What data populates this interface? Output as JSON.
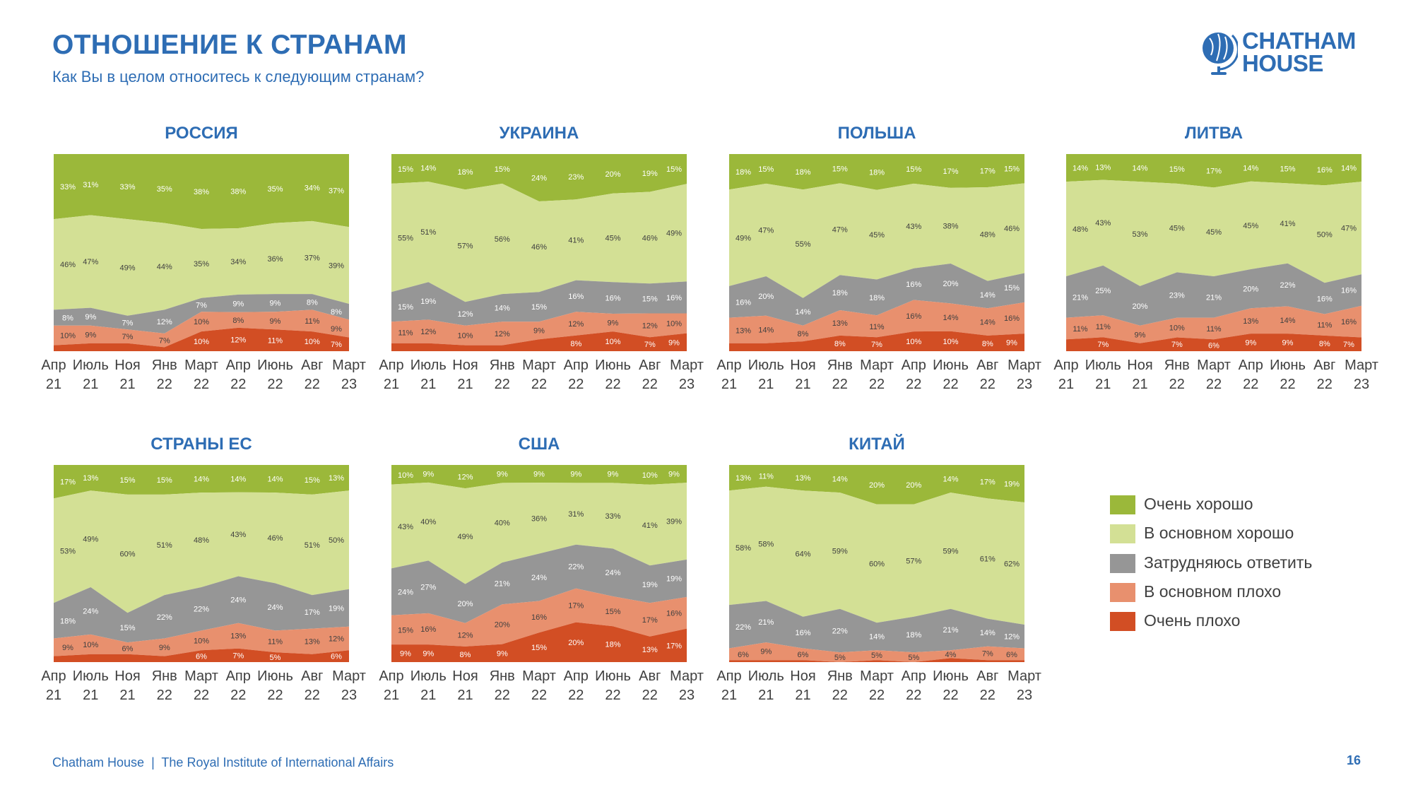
{
  "header": {
    "title": "ОТНОШЕНИЕ К СТРАНАМ",
    "subtitle": "Как Вы в целом относитесь к следующим странам?",
    "logo_text": "CHATHAM HOUSE",
    "logo_line1": "CHATHAM",
    "logo_line2": "HOUSE"
  },
  "footer": {
    "org": "Chatham House",
    "separator": "|",
    "institute": "The Royal Institute of International Affairs",
    "text": "Chatham House  |  The Royal Institute of International Affairs",
    "page": "16"
  },
  "colors": {
    "accent": "#2e6db4",
    "very_good": "#9bb83a",
    "mostly_good": "#d3e095",
    "dont_know": "#969696",
    "mostly_bad": "#e8906e",
    "very_bad": "#d24e24"
  },
  "legend": {
    "placement": "bottom-right",
    "items": [
      {
        "key": "vg",
        "label": "Очень хорошо",
        "color": "#9bb83a"
      },
      {
        "key": "mg",
        "label": "В основном хорошо",
        "color": "#d3e095"
      },
      {
        "key": "dk",
        "label": "Затрудняюсь ответить",
        "color": "#969696"
      },
      {
        "key": "mb",
        "label": "В основном плохо",
        "color": "#e8906e"
      },
      {
        "key": "vb",
        "label": "Очень плохо",
        "color": "#d24e24"
      }
    ]
  },
  "chart_data": [
    {
      "type": "area",
      "stacked": "100%",
      "title": "РОССИЯ",
      "categories": [
        "Апр 21",
        "Июль 21",
        "Ноя 21",
        "Янв 22",
        "Март 22",
        "Апр 22",
        "Июнь 22",
        "Авг 22",
        "Март 23"
      ],
      "series": [
        {
          "name": "Очень хорошо",
          "values": [
            33,
            31,
            33,
            35,
            38,
            38,
            35,
            34,
            37
          ]
        },
        {
          "name": "В основном хорошо",
          "values": [
            46,
            47,
            49,
            44,
            35,
            34,
            36,
            37,
            39
          ]
        },
        {
          "name": "Затрудняюсь ответить",
          "values": [
            8,
            9,
            7,
            12,
            7,
            9,
            9,
            8,
            8
          ]
        },
        {
          "name": "В основном плохо",
          "values": [
            10,
            9,
            7,
            7,
            10,
            8,
            9,
            11,
            9
          ]
        },
        {
          "name": "Очень плохо",
          "values": [
            null,
            null,
            null,
            null,
            10,
            12,
            11,
            10,
            7
          ]
        }
      ]
    },
    {
      "type": "area",
      "stacked": "100%",
      "title": "УКРАИНА",
      "categories": [
        "Апр 21",
        "Июль 21",
        "Ноя 21",
        "Янв 22",
        "Март 22",
        "Апр 22",
        "Июнь 22",
        "Авг 22",
        "Март 23"
      ],
      "series": [
        {
          "name": "Очень хорошо",
          "values": [
            15,
            14,
            18,
            15,
            24,
            23,
            20,
            19,
            15
          ]
        },
        {
          "name": "В основном хорошо",
          "values": [
            55,
            51,
            57,
            56,
            46,
            41,
            45,
            46,
            49
          ]
        },
        {
          "name": "Затрудняюсь ответить",
          "values": [
            15,
            19,
            12,
            14,
            15,
            16,
            16,
            15,
            16
          ]
        },
        {
          "name": "В основном плохо",
          "values": [
            11,
            12,
            10,
            12,
            9,
            12,
            9,
            12,
            10
          ]
        },
        {
          "name": "Очень плохо",
          "values": [
            null,
            null,
            null,
            null,
            null,
            8,
            10,
            7,
            9
          ]
        }
      ]
    },
    {
      "type": "area",
      "stacked": "100%",
      "title": "ПОЛЬША",
      "categories": [
        "Апр 21",
        "Июль 21",
        "Ноя 21",
        "Янв 22",
        "Март 22",
        "Апр 22",
        "Июнь 22",
        "Авг 22",
        "Март 23"
      ],
      "series": [
        {
          "name": "Очень хорошо",
          "values": [
            18,
            15,
            18,
            15,
            18,
            15,
            17,
            17,
            15
          ]
        },
        {
          "name": "В основном хорошо",
          "values": [
            49,
            47,
            55,
            47,
            45,
            43,
            38,
            48,
            46
          ]
        },
        {
          "name": "Затрудняюсь ответить",
          "values": [
            16,
            20,
            14,
            18,
            18,
            16,
            20,
            14,
            15
          ]
        },
        {
          "name": "В основном плохо",
          "values": [
            13,
            14,
            8,
            13,
            11,
            16,
            14,
            14,
            16
          ]
        },
        {
          "name": "Очень плохо",
          "values": [
            null,
            null,
            null,
            8,
            7,
            10,
            10,
            8,
            9
          ]
        }
      ]
    },
    {
      "type": "area",
      "stacked": "100%",
      "title": "ЛИТВА",
      "categories": [
        "Апр 21",
        "Июль 21",
        "Ноя 21",
        "Янв 22",
        "Март 22",
        "Апр 22",
        "Июнь 22",
        "Авг 22",
        "Март 23"
      ],
      "series": [
        {
          "name": "Очень хорошо",
          "values": [
            14,
            13,
            14,
            15,
            17,
            14,
            15,
            16,
            14
          ]
        },
        {
          "name": "В основном хорошо",
          "values": [
            48,
            43,
            53,
            45,
            45,
            45,
            41,
            50,
            47
          ]
        },
        {
          "name": "Затрудняюсь ответить",
          "values": [
            21,
            25,
            20,
            23,
            21,
            20,
            22,
            16,
            16
          ]
        },
        {
          "name": "В основном плохо",
          "values": [
            11,
            11,
            9,
            10,
            11,
            13,
            14,
            11,
            16
          ]
        },
        {
          "name": "Очень плохо",
          "values": [
            null,
            7,
            null,
            7,
            6,
            9,
            9,
            8,
            7
          ]
        }
      ]
    },
    {
      "type": "area",
      "stacked": "100%",
      "title": "СТРАНЫ ЕС",
      "categories": [
        "Апр 21",
        "Июль 21",
        "Ноя 21",
        "Янв 22",
        "Март 22",
        "Апр 22",
        "Июнь 22",
        "Авг 22",
        "Март 23"
      ],
      "series": [
        {
          "name": "Очень хорошо",
          "values": [
            17,
            13,
            15,
            15,
            14,
            14,
            14,
            15,
            13
          ]
        },
        {
          "name": "В основном хорошо",
          "values": [
            53,
            49,
            60,
            51,
            48,
            43,
            46,
            51,
            50
          ]
        },
        {
          "name": "Затрудняюсь ответить",
          "values": [
            18,
            24,
            15,
            22,
            22,
            24,
            24,
            17,
            19
          ]
        },
        {
          "name": "В основном плохо",
          "values": [
            9,
            10,
            6,
            9,
            10,
            13,
            11,
            13,
            12
          ]
        },
        {
          "name": "Очень плохо",
          "values": [
            null,
            null,
            null,
            null,
            6,
            7,
            5,
            null,
            6
          ]
        }
      ]
    },
    {
      "type": "area",
      "stacked": "100%",
      "title": "США",
      "categories": [
        "Апр 21",
        "Июль 21",
        "Ноя 21",
        "Янв 22",
        "Март 22",
        "Апр 22",
        "Июнь 22",
        "Авг 22",
        "Март 23"
      ],
      "series": [
        {
          "name": "Очень хорошо",
          "values": [
            10,
            9,
            12,
            9,
            9,
            9,
            9,
            10,
            9
          ]
        },
        {
          "name": "В основном хорошо",
          "values": [
            43,
            40,
            49,
            40,
            36,
            31,
            33,
            41,
            39
          ]
        },
        {
          "name": "Затрудняюсь ответить",
          "values": [
            24,
            27,
            20,
            21,
            24,
            22,
            24,
            19,
            19
          ]
        },
        {
          "name": "В основном плохо",
          "values": [
            15,
            16,
            12,
            20,
            16,
            17,
            15,
            17,
            16
          ]
        },
        {
          "name": "Очень плохо",
          "values": [
            9,
            9,
            8,
            9,
            15,
            20,
            18,
            13,
            17
          ]
        }
      ]
    },
    {
      "type": "area",
      "stacked": "100%",
      "title": "КИТАЙ",
      "categories": [
        "Апр 21",
        "Июль 21",
        "Ноя 21",
        "Янв 22",
        "Март 22",
        "Апр 22",
        "Июнь 22",
        "Авг 22",
        "Март 23"
      ],
      "series": [
        {
          "name": "Очень хорошо",
          "values": [
            13,
            11,
            13,
            14,
            20,
            20,
            14,
            17,
            19
          ]
        },
        {
          "name": "В основном хорошо",
          "values": [
            58,
            58,
            64,
            59,
            60,
            57,
            59,
            61,
            62
          ]
        },
        {
          "name": "Затрудняюсь ответить",
          "values": [
            22,
            21,
            16,
            22,
            14,
            18,
            21,
            14,
            12
          ]
        },
        {
          "name": "В основном плохо",
          "values": [
            6,
            9,
            6,
            5,
            5,
            5,
            4,
            7,
            6
          ]
        },
        {
          "name": "Очень плохо",
          "values": [
            null,
            null,
            null,
            null,
            null,
            null,
            null,
            null,
            null
          ]
        }
      ]
    }
  ]
}
